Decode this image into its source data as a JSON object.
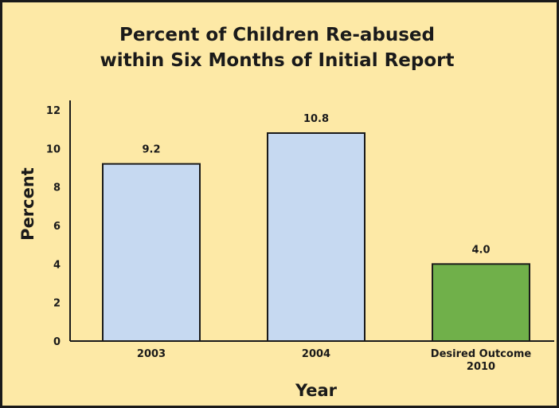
{
  "chart_data": {
    "type": "bar",
    "title_lines": [
      "Percent of Children Re-abused",
      "within Six Months of Initial Report"
    ],
    "xlabel": "Year",
    "ylabel": "Percent",
    "categories": [
      [
        "2003"
      ],
      [
        "2004"
      ],
      [
        "Desired Outcome",
        "2010"
      ]
    ],
    "values": [
      9.2,
      10.8,
      4.0
    ],
    "value_labels": [
      "9.2",
      "10.8",
      "4.0"
    ],
    "bar_colors": [
      "#c6d9f1",
      "#c6d9f1",
      "#70b04a"
    ],
    "ylim": [
      0,
      12
    ],
    "yticks": [
      0,
      2,
      4,
      6,
      8,
      10,
      12
    ],
    "grid": false,
    "legend": "none"
  },
  "colors": {
    "background": "#fde9a6",
    "axis": "#1a1a1a"
  }
}
